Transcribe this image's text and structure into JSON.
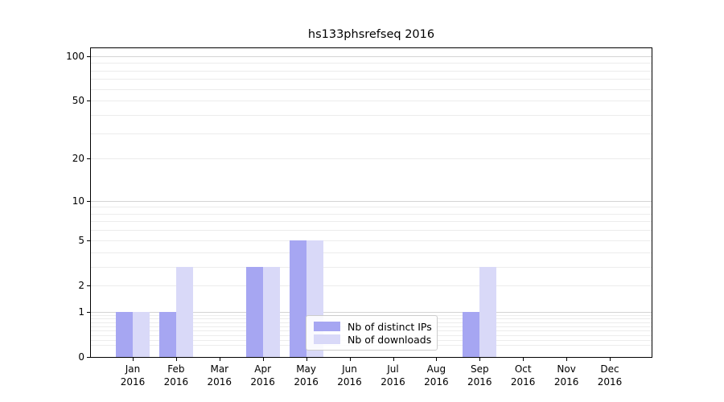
{
  "title": "hs133phsrefseq 2016",
  "chart_data": {
    "type": "bar",
    "title": "hs133phsrefseq 2016",
    "xlabel": "",
    "ylabel": "",
    "categories": [
      {
        "month": "Jan",
        "year": "2016"
      },
      {
        "month": "Feb",
        "year": "2016"
      },
      {
        "month": "Mar",
        "year": "2016"
      },
      {
        "month": "Apr",
        "year": "2016"
      },
      {
        "month": "May",
        "year": "2016"
      },
      {
        "month": "Jun",
        "year": "2016"
      },
      {
        "month": "Jul",
        "year": "2016"
      },
      {
        "month": "Aug",
        "year": "2016"
      },
      {
        "month": "Sep",
        "year": "2016"
      },
      {
        "month": "Oct",
        "year": "2016"
      },
      {
        "month": "Nov",
        "year": "2016"
      },
      {
        "month": "Dec",
        "year": "2016"
      }
    ],
    "series": [
      {
        "name": "Nb of distinct IPs",
        "color": "#a6a6f2",
        "values": [
          1,
          1,
          0,
          3,
          5,
          0,
          0,
          0,
          1,
          0,
          0,
          0
        ]
      },
      {
        "name": "Nb of downloads",
        "color": "#d9d9f8",
        "values": [
          1,
          3,
          0,
          3,
          5,
          0,
          0,
          0,
          3,
          0,
          0,
          0
        ]
      }
    ],
    "y_axis": {
      "scale": "log10(1+x)",
      "ylim": [
        0,
        113
      ],
      "tick_values": [
        0,
        1,
        2,
        5,
        10,
        20,
        50,
        100
      ],
      "tick_labels": [
        "0",
        "1",
        "2",
        "5",
        "10",
        "20",
        "50",
        "100"
      ],
      "major_gridline_values": [
        1,
        10,
        100
      ],
      "minor_gridline_values": [
        0.2,
        0.3,
        0.4,
        0.5,
        0.6,
        0.7,
        0.8,
        0.9,
        2,
        3,
        4,
        5,
        6,
        7,
        8,
        9,
        20,
        30,
        40,
        50,
        60,
        70,
        80,
        90
      ]
    },
    "grid": true,
    "legend_position": "lower center-right, inside plot"
  },
  "colors": {
    "background": "#ffffff",
    "bar_distinct_ips": "#a6a6f2",
    "bar_downloads": "#d9d9f8",
    "grid_major": "#d4d4d4",
    "grid_minor": "#ececec",
    "axis": "#000000",
    "legend_border": "#cccccc"
  }
}
